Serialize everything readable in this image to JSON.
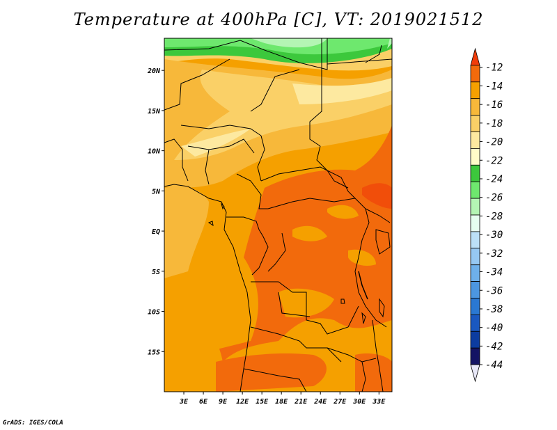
{
  "title": "Temperature at 400hPa [C], VT: 2019021512",
  "credit": "GrADS: IGES/COLA",
  "map": {
    "lon_min": 0,
    "lon_max": 35,
    "lat_min": -20,
    "lat_max": 24,
    "lat_ticks": [
      {
        "value": 20,
        "label": "20N"
      },
      {
        "value": 15,
        "label": "15N"
      },
      {
        "value": 10,
        "label": "10N"
      },
      {
        "value": 5,
        "label": "5N"
      },
      {
        "value": 0,
        "label": "EQ"
      },
      {
        "value": -5,
        "label": "5S"
      },
      {
        "value": -10,
        "label": "10S"
      },
      {
        "value": -15,
        "label": "15S"
      }
    ],
    "lon_ticks": [
      {
        "value": 3,
        "label": "3E"
      },
      {
        "value": 6,
        "label": "6E"
      },
      {
        "value": 9,
        "label": "9E"
      },
      {
        "value": 12,
        "label": "12E"
      },
      {
        "value": 15,
        "label": "15E"
      },
      {
        "value": 18,
        "label": "18E"
      },
      {
        "value": 21,
        "label": "21E"
      },
      {
        "value": 24,
        "label": "24E"
      },
      {
        "value": 27,
        "label": "27E"
      },
      {
        "value": 30,
        "label": "30E"
      },
      {
        "value": 33,
        "label": "33E"
      }
    ]
  },
  "colorbar": {
    "labels": [
      "-12",
      "-14",
      "-16",
      "-18",
      "-20",
      "-22",
      "-24",
      "-26",
      "-28",
      "-30",
      "-32",
      "-34",
      "-36",
      "-38",
      "-40",
      "-42",
      "-44"
    ],
    "colors": [
      "#f03c0a",
      "#f26a0c",
      "#f5a000",
      "#f7b83a",
      "#fad067",
      "#fde9a0",
      "#fffcc8",
      "#3cc83c",
      "#6ee86e",
      "#b4f5b4",
      "#e6fff0",
      "#bce0f8",
      "#96c8f2",
      "#6eb0ea",
      "#4c96e0",
      "#2a78d2",
      "#1a58c0",
      "#0c3ca0",
      "#141464",
      "#e8e8f8"
    ]
  }
}
